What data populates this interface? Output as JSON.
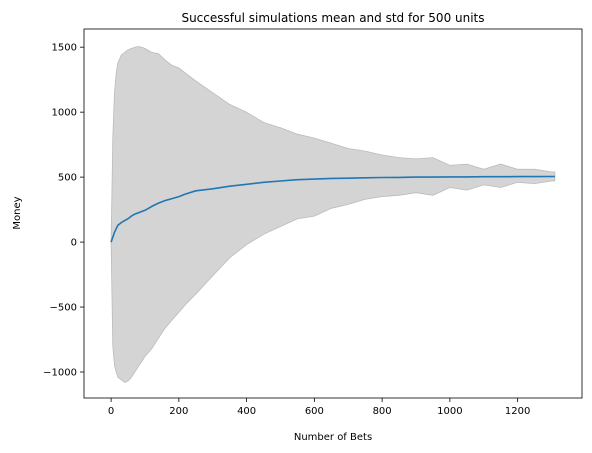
{
  "chart_data": {
    "type": "area",
    "title": "Successful simulations mean and std for 500 units",
    "xlabel": "Number of Bets",
    "ylabel": "Money",
    "xlim": [
      -80,
      1390
    ],
    "ylim": [
      -1200,
      1640
    ],
    "xticks": [
      0,
      200,
      400,
      600,
      800,
      1000,
      1200
    ],
    "yticks": [
      -1000,
      -500,
      0,
      500,
      1000,
      1500
    ],
    "ytick_labels": [
      "−1000",
      "−500",
      "0",
      "500",
      "1000",
      "1500"
    ],
    "grid": false,
    "colors": {
      "mean": "#1f77b4",
      "band": "#d4d4d4",
      "band_edge": "#bbbbbb"
    },
    "series": [
      {
        "values_x": [
          0,
          10,
          20,
          30,
          40,
          50,
          60,
          70,
          80,
          100,
          120,
          140,
          160,
          180,
          200,
          220,
          250,
          300,
          350,
          400,
          450,
          500,
          550,
          600,
          650,
          700,
          750,
          800,
          850,
          900,
          950,
          1000,
          1050,
          1100,
          1150,
          1200,
          1250,
          1310
        ],
        "values": [
          0,
          75,
          130,
          150,
          165,
          180,
          200,
          215,
          225,
          245,
          275,
          300,
          320,
          335,
          350,
          370,
          395,
          410,
          430,
          445,
          460,
          470,
          480,
          485,
          490,
          492,
          495,
          497,
          498,
          500,
          500,
          502,
          502,
          503,
          503,
          504,
          504,
          505
        ]
      },
      {
        "x": [
          0,
          5,
          10,
          15,
          20,
          30,
          40,
          50,
          60,
          70,
          80,
          90,
          100,
          120,
          140,
          160,
          180,
          200,
          220,
          250,
          300,
          350,
          400,
          450,
          500,
          550,
          600,
          650,
          700,
          750,
          800,
          850,
          900,
          950,
          1000,
          1050,
          1100,
          1150,
          1200,
          1250,
          1300,
          1310
        ],
        "upper": [
          0,
          800,
          1150,
          1300,
          1380,
          1440,
          1460,
          1480,
          1490,
          1500,
          1505,
          1500,
          1490,
          1460,
          1450,
          1400,
          1360,
          1340,
          1300,
          1240,
          1150,
          1060,
          1000,
          920,
          880,
          830,
          800,
          760,
          720,
          700,
          670,
          650,
          640,
          650,
          590,
          600,
          560,
          600,
          560,
          560,
          540,
          540
        ],
        "lower": [
          0,
          -800,
          -950,
          -1000,
          -1040,
          -1060,
          -1080,
          -1070,
          -1040,
          -1000,
          -960,
          -920,
          -880,
          -820,
          -740,
          -660,
          -600,
          -540,
          -480,
          -400,
          -260,
          -120,
          -20,
          60,
          120,
          180,
          200,
          260,
          290,
          330,
          350,
          360,
          380,
          360,
          420,
          400,
          440,
          420,
          460,
          450,
          470,
          470
        ]
      }
    ]
  }
}
